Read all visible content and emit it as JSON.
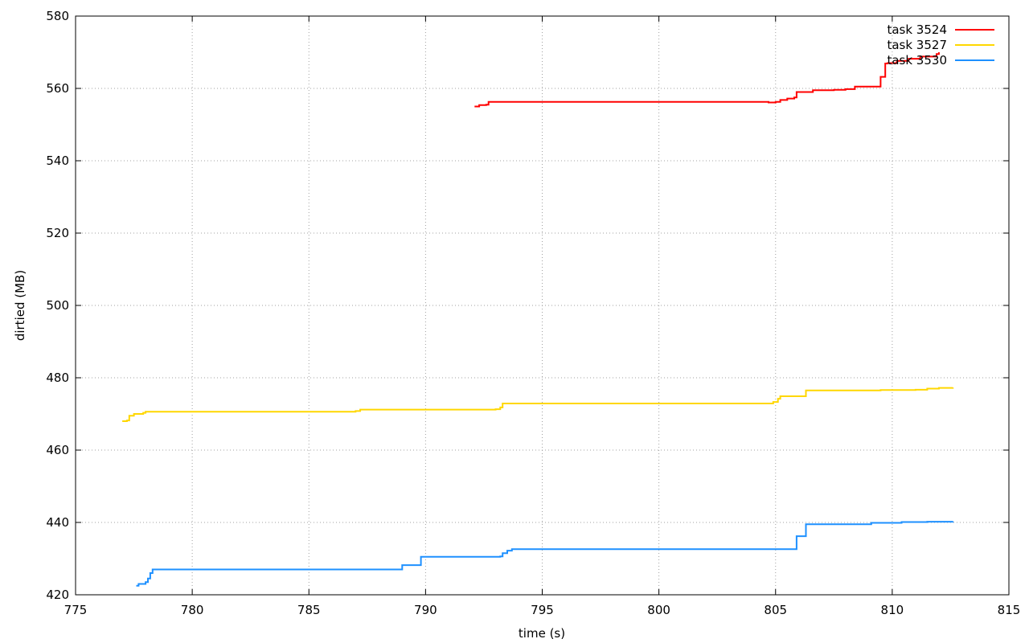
{
  "chart_data": {
    "type": "line",
    "title": "",
    "xlabel": "time (s)",
    "ylabel": "dirtied (MB)",
    "xlim": [
      775,
      815
    ],
    "ylim": [
      420,
      580
    ],
    "xticks": [
      775,
      780,
      785,
      790,
      795,
      800,
      805,
      810,
      815
    ],
    "yticks": [
      420,
      440,
      460,
      480,
      500,
      520,
      540,
      560,
      580
    ],
    "grid": true,
    "legend_position": "top-right",
    "series": [
      {
        "name": "task 3524",
        "color": "#ff0000",
        "x": [
          792.1,
          792.3,
          792.6,
          792.7,
          794.0,
          797.0,
          800.0,
          804.5,
          804.7,
          805.0,
          805.2,
          805.5,
          805.8,
          805.9,
          806.3,
          806.6,
          807.5,
          808.0,
          808.4,
          809.0,
          809.5,
          809.5,
          809.7,
          809.8,
          810.2,
          810.7,
          811.2,
          811.9,
          812.0
        ],
        "y": [
          555.0,
          555.4,
          555.5,
          556.3,
          556.3,
          556.3,
          556.3,
          556.3,
          556.1,
          556.3,
          556.8,
          557.2,
          557.5,
          559.0,
          559.0,
          559.5,
          559.6,
          559.8,
          560.5,
          560.5,
          560.5,
          563.2,
          566.9,
          567.0,
          567.6,
          568.2,
          568.8,
          569.5,
          570.0
        ]
      },
      {
        "name": "task 3527",
        "color": "#ffd700",
        "x": [
          777.0,
          777.2,
          777.3,
          777.5,
          777.9,
          778.0,
          783.0,
          786.8,
          787.0,
          787.2,
          790.0,
          793.0,
          793.2,
          793.3,
          797.0,
          801.0,
          804.5,
          804.9,
          805.1,
          805.2,
          806.0,
          806.3,
          808.0,
          809.0,
          809.5,
          811.0,
          811.5,
          812.0,
          812.6
        ],
        "y": [
          468.0,
          468.2,
          469.5,
          470.0,
          470.3,
          470.6,
          470.6,
          470.6,
          470.8,
          471.2,
          471.2,
          471.3,
          471.8,
          472.9,
          472.9,
          472.9,
          472.9,
          473.3,
          474.2,
          474.9,
          474.9,
          476.5,
          476.5,
          476.5,
          476.6,
          476.7,
          477.0,
          477.2,
          477.3
        ]
      },
      {
        "name": "task 3530",
        "color": "#1e90ff",
        "x": [
          777.6,
          777.7,
          778.0,
          778.1,
          778.2,
          778.3,
          783.0,
          788.9,
          789.0,
          789.7,
          789.8,
          792.0,
          793.2,
          793.3,
          793.5,
          793.7,
          797.0,
          801.0,
          805.8,
          805.9,
          806.2,
          806.3,
          808.0,
          808.9,
          809.1,
          810.0,
          810.4,
          811.5,
          812.6
        ],
        "y": [
          422.5,
          423.0,
          423.5,
          424.5,
          426.0,
          427.0,
          427.0,
          427.0,
          428.2,
          428.2,
          430.5,
          430.5,
          430.6,
          431.5,
          432.2,
          432.6,
          432.6,
          432.6,
          432.6,
          436.2,
          436.2,
          439.5,
          439.5,
          439.5,
          439.9,
          439.9,
          440.1,
          440.2,
          440.3
        ]
      }
    ]
  }
}
